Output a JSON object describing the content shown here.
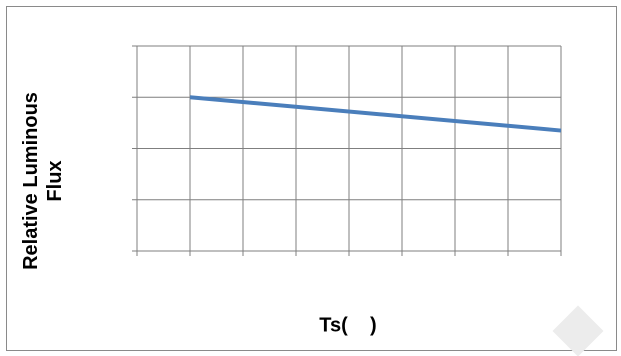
{
  "chart_data": {
    "type": "line",
    "title": "",
    "xlabel": "Ts(    )",
    "ylabel_line1": "Relative Luminous",
    "ylabel_line2": "Flux",
    "x_divisions": 8,
    "y_divisions": 4,
    "grid": true,
    "xlim": [
      0,
      8
    ],
    "ylim": [
      0,
      4
    ],
    "series": [
      {
        "x": [
          1,
          8
        ],
        "y": [
          3,
          2.35
        ]
      }
    ],
    "colors": {
      "line": "#4a7ebb",
      "grid": "#7f7f7f",
      "frame": "#8a8a8a"
    }
  }
}
